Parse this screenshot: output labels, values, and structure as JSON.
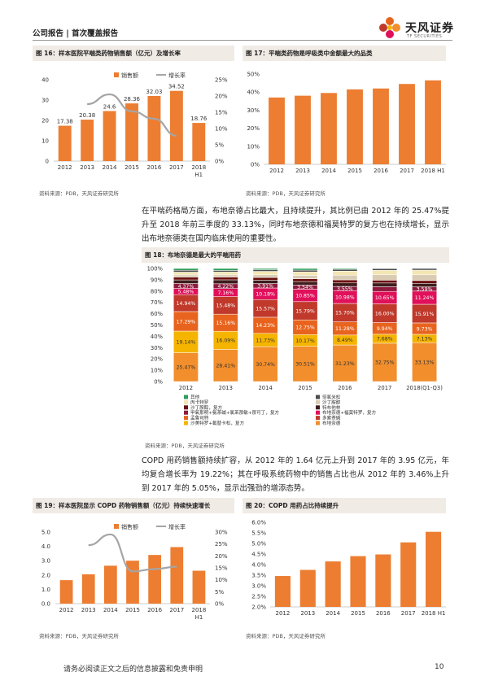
{
  "header": {
    "left": "公司报告 | 首次覆盖报告",
    "logo_name": "天风证券",
    "logo_en": "TF SECURITIES"
  },
  "fig16": {
    "title": "图 16：样本医院平喘类药物销售额（亿元）及增长率",
    "source": "资料来源：PDB，天风证券研究所"
  },
  "fig17": {
    "title": "图 17：平喘类药物是呼吸类中金额最大的品类",
    "source": "资料来源：PDB，天风证券研究所"
  },
  "para1": "在平喘药格局方面，布地奈德占比最大，且持续提升，其比例已由 2012 年的 25.47%提升至 2018 年前三季度的 33.13%，同时布地奈德和福莫特罗的复方也在持续增长，显示出布地奈德类在国内临床使用的重要性。",
  "fig18": {
    "title": "图 18：布地奈德是最大的平喘用药",
    "source": "资料来源：PDB，天风证券研究所"
  },
  "para2": "COPD 用药销售额持续扩容，从 2012 年的 1.64 亿元上升到 2017 年的 3.95 亿元，年均复合增长率为 19.22%；其在呼吸系统药物中的销售占比也从 2012 年的 3.46%上升到 2017 年的 5.05%，显示出强劲的增添态势。",
  "fig19": {
    "title": "图 19：样本医院显示 COPD 药物销售额（亿元）持续快速增长",
    "source": "资料来源：PDB，天风证券研究所"
  },
  "fig20": {
    "title": "图 20：COPD 用药占比持续提升",
    "source": "资料来源：PDB，天风证券研究所"
  },
  "footer": {
    "disclaimer": "请务必阅读正文之后的信息披露和免责申明",
    "page": "10"
  },
  "colors": {
    "orange": "#ed7d31",
    "gray": "#a5a5a5"
  },
  "chart_data": [
    {
      "id": "fig16",
      "type": "bar",
      "categories": [
        "2012",
        "2013",
        "2014",
        "2015",
        "2016",
        "2017",
        "2018\nH1"
      ],
      "series": [
        {
          "name": "销售额",
          "type": "bar",
          "axis": "left",
          "values": [
            17.38,
            20.38,
            24.6,
            28.36,
            32.03,
            34.52,
            18.76
          ],
          "labels": [
            "17.38",
            "20.38",
            "24.6",
            "28.36",
            "32.03",
            "34.52",
            "18.76"
          ]
        },
        {
          "name": "增长率",
          "type": "line",
          "axis": "right",
          "values": [
            null,
            17.5,
            20.5,
            15.3,
            13.0,
            7.8,
            null
          ]
        }
      ],
      "ylim": [
        0,
        40
      ],
      "yticks": [
        0,
        10,
        20,
        30,
        40
      ],
      "y2lim": [
        0,
        25
      ],
      "y2ticks": [
        "0%",
        "5%",
        "10%",
        "15%",
        "20%",
        "25%"
      ]
    },
    {
      "id": "fig17",
      "type": "bar",
      "categories": [
        "2012",
        "2013",
        "2014",
        "2015",
        "2016",
        "2017",
        "2018 H1"
      ],
      "values": [
        37.0,
        38.0,
        39.5,
        41.5,
        42.0,
        44.5,
        46.5
      ],
      "ylim": [
        0,
        50
      ],
      "yticks": [
        "0%",
        "10%",
        "20%",
        "30%",
        "40%",
        "50%"
      ]
    },
    {
      "id": "fig18",
      "type": "bar",
      "stacked": true,
      "categories": [
        "2012",
        "2013",
        "2014",
        "2015",
        "2016",
        "2017",
        "2018(Q1-Q3)"
      ],
      "yticks": [
        "0%",
        "10%",
        "20%",
        "30%",
        "40%",
        "50%",
        "60%",
        "70%",
        "80%",
        "90%",
        "100%"
      ],
      "series": [
        {
          "name": "布地奈德",
          "color": "#f28e2b",
          "values": [
            25.47,
            28.41,
            30.74,
            30.51,
            31.23,
            32.75,
            33.13
          ],
          "labels": [
            "25.47%",
            "28.41%",
            "30.74%",
            "30.51%",
            "31.23%",
            "32.75%",
            "33.13%"
          ]
        },
        {
          "name": "沙美特罗+氟替卡松，复方",
          "color": "#f5b400",
          "values": [
            19.14,
            16.09,
            11.73,
            10.17,
            8.49,
            7.68,
            7.13
          ],
          "labels": [
            "19.14%",
            "16.09%",
            "11.73%",
            "10.17%",
            "8.49%",
            "7.68%",
            "7.13%"
          ]
        },
        {
          "name": "孟鲁司特",
          "color": "#e8641e",
          "values": [
            17.29,
            15.16,
            14.23,
            12.75,
            11.28,
            9.94,
            9.73
          ],
          "labels": [
            "17.29%",
            "15.16%",
            "14.23%",
            "12.75%",
            "11.28%",
            "9.94%",
            "9.73%"
          ]
        },
        {
          "name": "多索茶碱",
          "color": "#c0392b",
          "values": [
            14.94,
            15.48,
            15.57,
            15.79,
            15.7,
            16.0,
            15.91
          ],
          "labels": [
            "14.94%",
            "15.48%",
            "15.57%",
            "15.79%",
            "15.70%",
            "16.00%",
            "15.91%"
          ]
        },
        {
          "name": "布地奈德+福莫特罗，复方",
          "color": "#e0105a",
          "values": [
            5.48,
            7.16,
            10.18,
            10.85,
            10.98,
            10.65,
            11.24
          ],
          "labels": [
            "5.48%",
            "7.16%",
            "10.18%",
            "10.85%",
            "10.98%",
            "10.65%",
            "11.24%"
          ]
        },
        {
          "name": "甲氧那明+氨茶碱+氯苯那敏+那可丁，复方",
          "color": "#8e1b3e",
          "values": [
            4.37,
            4.22,
            3.91,
            3.54,
            3.55,
            4.0,
            3.59
          ],
          "labels": [
            "4.37%",
            "4.22%",
            "3.91%",
            "3.54%",
            "3.55%",
            "",
            "3.59%"
          ]
        },
        {
          "name": "特布他林",
          "color": "#3f1c1c",
          "values": [
            3.2,
            3.5,
            3.0,
            3.0,
            3.0,
            3.2,
            3.0
          ]
        },
        {
          "name": "沙丁胺醇，复方",
          "color": "#6b1010",
          "values": [
            2.4,
            2.4,
            2.4,
            2.4,
            2.6,
            2.4,
            2.4
          ]
        },
        {
          "name": "沙丁胺醇",
          "color": "#d9cbb4",
          "values": [
            2.0,
            2.0,
            2.4,
            3.0,
            4.0,
            4.6,
            4.9
          ]
        },
        {
          "name": "丙卡特罗",
          "color": "#f3e6b3",
          "values": [
            2.5,
            2.5,
            3.0,
            3.0,
            3.5,
            3.8,
            4.0
          ]
        },
        {
          "name": "倍氯米松",
          "color": "#4d4d4d",
          "values": [
            1.6,
            1.4,
            1.4,
            1.5,
            1.5,
            1.5,
            1.4
          ]
        },
        {
          "name": "其他",
          "color": "#2e9e5b",
          "values": [
            1.61,
            1.76,
            1.12,
            1.46,
            0.75,
            0.1,
            0.0
          ]
        }
      ],
      "legend": [
        "其他",
        "倍氯米松",
        "丙卡特罗",
        "沙丁胺醇",
        "沙丁胺醇，复方",
        "特布他林",
        "甲氧那明+氨茶碱+氯苯那敏+那可丁，复方",
        "布地奈德+福莫特罗，复方",
        "孟鲁司特",
        "多索茶碱",
        "沙美特罗+氟替卡松，复方",
        "布地奈德"
      ]
    },
    {
      "id": "fig19",
      "type": "bar",
      "categories": [
        "2012",
        "2013",
        "2014",
        "2015",
        "2016",
        "2017",
        "2018\nH1"
      ],
      "series": [
        {
          "name": "销售额",
          "type": "bar",
          "axis": "left",
          "values": [
            1.64,
            2.05,
            2.65,
            3.0,
            3.4,
            3.95,
            2.3
          ]
        },
        {
          "name": "增长率",
          "type": "line",
          "axis": "right",
          "values": [
            null,
            24.5,
            29.0,
            13.5,
            14.5,
            15.5,
            null
          ]
        }
      ],
      "ylim": [
        0,
        5
      ],
      "yticks": [
        "0.0",
        "1.0",
        "2.0",
        "3.0",
        "4.0",
        "5.0"
      ],
      "y2lim": [
        0,
        30
      ],
      "y2ticks": [
        "0%",
        "5%",
        "10%",
        "15%",
        "20%",
        "25%",
        "30%"
      ]
    },
    {
      "id": "fig20",
      "type": "bar",
      "categories": [
        "2012",
        "2013",
        "2014",
        "2015",
        "2016",
        "2017",
        "2018 H1"
      ],
      "values": [
        3.46,
        3.75,
        4.15,
        4.4,
        4.48,
        5.05,
        5.55
      ],
      "ylim": [
        2.0,
        6.0
      ],
      "yticks": [
        "2.0%",
        "2.5%",
        "3.0%",
        "3.5%",
        "4.0%",
        "4.5%",
        "5.0%",
        "5.5%",
        "6.0%"
      ]
    }
  ]
}
